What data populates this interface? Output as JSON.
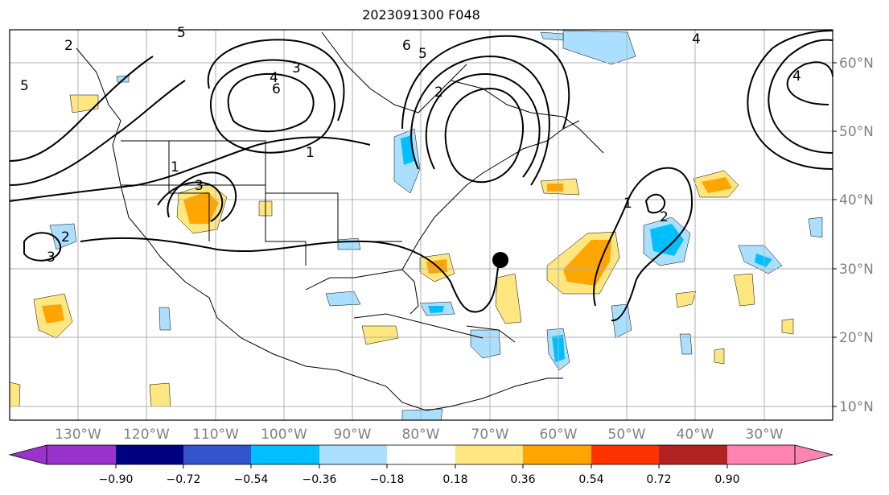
{
  "title": "2023091300 F048",
  "map": {
    "lat_labels": [
      "60°N",
      "50°N",
      "40°N",
      "30°N",
      "20°N",
      "10°N"
    ],
    "lon_labels": [
      "130°W",
      "120°W",
      "110°W",
      "100°W",
      "90°W",
      "80°W",
      "70°W",
      "60°W",
      "50°W",
      "40°W",
      "30°W"
    ],
    "contour_labels": [
      "3",
      "2",
      "1",
      "5",
      "4",
      "6",
      "3",
      "2",
      "5",
      "6",
      "4",
      "1",
      "2",
      "3",
      "4",
      "5",
      "2",
      "1"
    ]
  },
  "colorbar": {
    "ticks": [
      "−0.90",
      "−0.72",
      "−0.54",
      "−0.36",
      "−0.18",
      "0.18",
      "0.36",
      "0.54",
      "0.72",
      "0.90"
    ],
    "colors": [
      "#9933cc",
      "#000080",
      "#3355cc",
      "#00bfff",
      "#aadfff",
      "#ffffff",
      "#ffe680",
      "#ffa500",
      "#ff3300",
      "#b22222",
      "#ff85b0"
    ]
  },
  "colors": {
    "pos_light": "#ffe680",
    "pos_mid": "#ffa500",
    "neg_light": "#aadfff",
    "neg_mid": "#00bfff",
    "grid": "#b0b0b0"
  }
}
